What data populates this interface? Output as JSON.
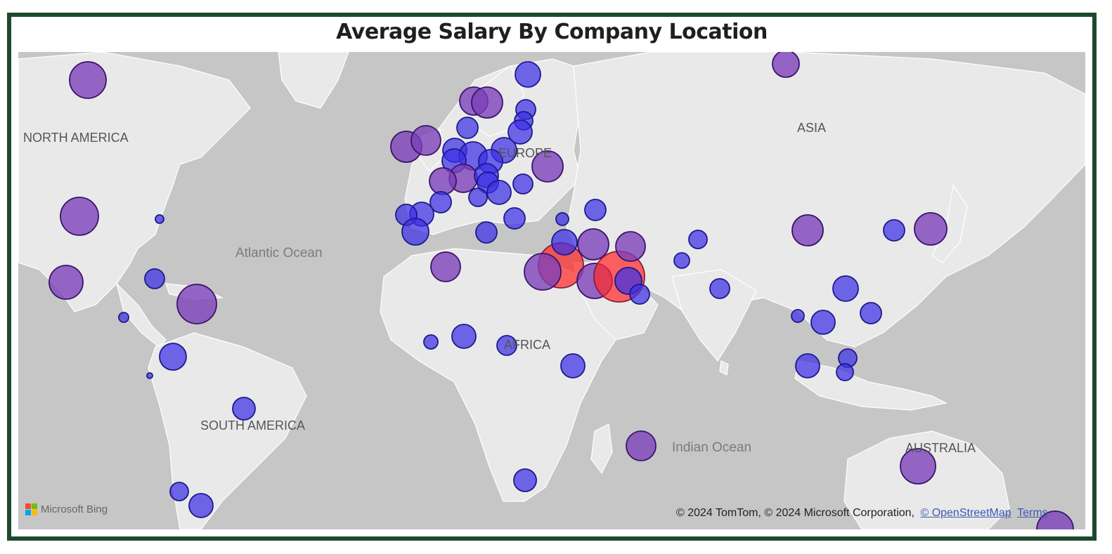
{
  "title": "Average Salary By Company Location",
  "labels": {
    "north_america": "NORTH AMERICA",
    "atlantic_ocean": "Atlantic Ocean",
    "europe": "EUROPE",
    "asia": "ASIA",
    "africa": "AFRICA",
    "south_america": "SOUTH AMERICA",
    "indian_ocean": "Indian Ocean",
    "australia": "AUSTRALIA"
  },
  "branding": {
    "provider": "Microsoft Bing",
    "attribution": "© 2024 TomTom, © 2024 Microsoft Corporation,",
    "osm_link": "© OpenStreetMap",
    "terms_link": "Terms"
  },
  "colors": {
    "frame": "#1d4a2c",
    "land": "#e9e9e9",
    "water": "#c6c6c6",
    "bubble_low": "#3b2fe6",
    "bubble_mid": "#7b3fb8",
    "bubble_high": "#ff2a2a"
  },
  "legend_semantics": "bubble size and color encode average salary (blue = lower, purple = mid, red = highest)"
}
